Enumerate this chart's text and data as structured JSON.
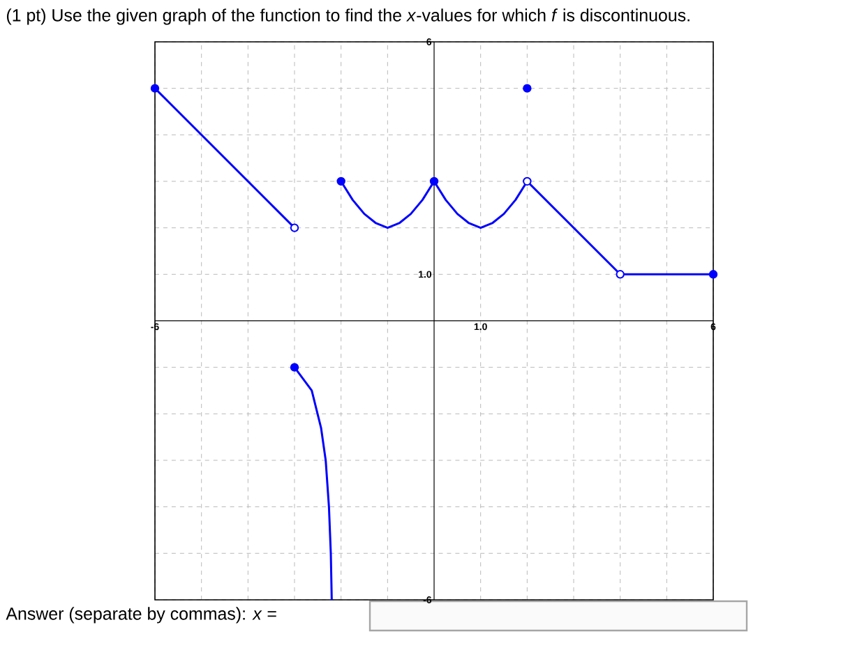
{
  "chart_data": {
    "type": "line",
    "title": "(1 pt) Use the given graph of the function to find the *x*-values for which *f* is discontinuous.",
    "annotations": [
      "Answer (separate by commas): *x* ="
    ],
    "xlim": [
      -6,
      6
    ],
    "ylim": [
      -6,
      6
    ],
    "xticks": [
      -6,
      {
        "value": -5,
        "label": null
      },
      {
        "value": -4,
        "label": null
      },
      {
        "value": -3,
        "label": null
      },
      {
        "value": -2,
        "label": null
      },
      {
        "value": -1,
        "label": null
      },
      {
        "value": 1,
        "label": "1.0"
      },
      {
        "value": 2,
        "label": null
      },
      {
        "value": 3,
        "label": null
      },
      {
        "value": 4,
        "label": null
      },
      {
        "value": 5,
        "label": null
      },
      6
    ],
    "yticks": [
      -6,
      {
        "value": -5,
        "label": null
      },
      {
        "value": -4,
        "label": null
      },
      {
        "value": -3,
        "label": null
      },
      {
        "value": -2,
        "label": null
      },
      {
        "value": -1,
        "label": null
      },
      {
        "value": 1,
        "label": "1.0"
      },
      {
        "value": 2,
        "label": null
      },
      {
        "value": 3,
        "label": null
      },
      {
        "value": 4,
        "label": null
      },
      {
        "value": 5,
        "label": null
      },
      6
    ],
    "grid": true,
    "marker": "none",
    "line_style": "solid",
    "series": [
      {
        "color": "#0000ff",
        "x": [
          -6,
          -3
        ],
        "values": [
          5,
          2
        ]
      },
      {
        "color": "#0000ff",
        "x": [
          -3,
          -2.63,
          -2.43,
          -2.33,
          -2.26,
          -2.22,
          -2.2
        ],
        "values": [
          -1,
          -1.5,
          -2.3,
          -3,
          -4,
          -5,
          -6
        ]
      },
      {
        "color": "#0000ff",
        "x": [
          -2,
          -1.75,
          -1.5,
          -1.25,
          -1,
          -0.75,
          -0.5,
          -0.25,
          0
        ],
        "values": [
          3,
          2.6,
          2.3,
          2.1,
          2,
          2.1,
          2.3,
          2.6,
          3
        ]
      },
      {
        "color": "#0000ff",
        "x": [
          0,
          0.25,
          0.5,
          0.75,
          1,
          1.25,
          1.5,
          1.75,
          2
        ],
        "values": [
          3,
          2.6,
          2.3,
          2.1,
          2,
          2.1,
          2.3,
          2.6,
          3
        ]
      },
      {
        "color": "#0000ff",
        "x": [
          2,
          4
        ],
        "values": [
          3,
          1
        ]
      },
      {
        "color": "#0000ff",
        "x": [
          4,
          6
        ],
        "values": [
          1,
          1
        ]
      },
      {
        "type": "scatter",
        "marker": "circle",
        "color": "#0000ff",
        "x": [
          -6,
          -3,
          -2,
          0,
          2,
          6
        ],
        "values": [
          5,
          -1,
          3,
          3,
          5,
          1
        ]
      },
      {
        "type": "scatter",
        "marker": "circle",
        "color": "#ffffff",
        "x": [
          -3,
          2,
          4
        ],
        "values": [
          2,
          3,
          1
        ]
      }
    ]
  }
}
